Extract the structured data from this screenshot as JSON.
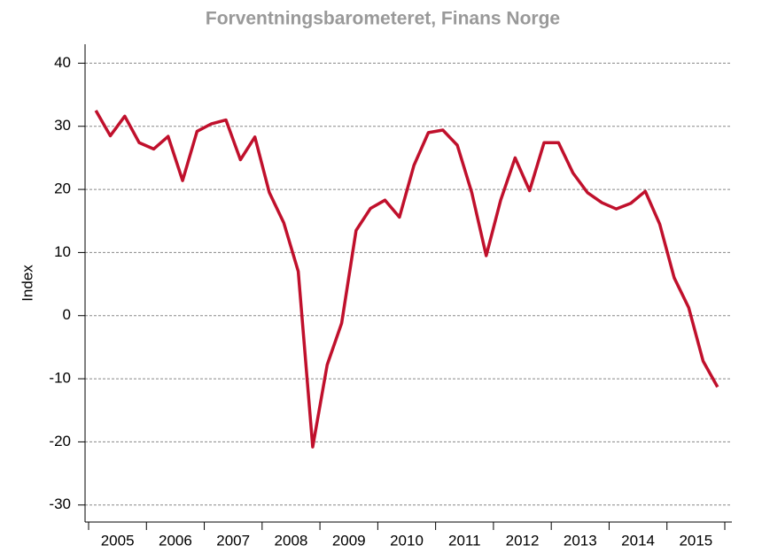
{
  "chart_data": {
    "type": "line",
    "title": "Forventningsbarometeret, Finans Norge",
    "y_label": "Index",
    "categories": [
      "2005",
      null,
      null,
      null,
      "2006",
      null,
      null,
      null,
      "2007",
      null,
      null,
      null,
      "2008",
      null,
      null,
      null,
      "2009",
      null,
      null,
      null,
      "2010",
      null,
      null,
      null,
      "2011",
      null,
      null,
      null,
      "2012",
      null,
      null,
      null,
      "2013",
      null,
      null,
      null,
      "2014",
      null,
      null,
      null,
      "2015",
      null,
      null,
      null
    ],
    "series": [
      {
        "name": "Index",
        "color": "#c0102c",
        "values": [
          32.5,
          28.5,
          31.6,
          27.4,
          26.4,
          28.4,
          21.4,
          29.2,
          30.4,
          31,
          24.7,
          28.3,
          19.5,
          14.7,
          7,
          -20.8,
          -7.8,
          -1.2,
          13.5,
          17,
          18.3,
          15.6,
          23.8,
          29,
          29.4,
          27,
          19.5,
          9.5,
          18.3,
          25,
          19.8,
          27.4,
          27.4,
          22.6,
          19.5,
          17.9,
          16.9,
          17.8,
          19.7,
          14.5,
          6,
          1.3,
          -7.2,
          -11.3
        ]
      }
    ],
    "ylim": [
      -32.7,
      43
    ],
    "yticks": [
      -30,
      -20,
      -10,
      0,
      10,
      20,
      30,
      40
    ],
    "grid": true
  }
}
